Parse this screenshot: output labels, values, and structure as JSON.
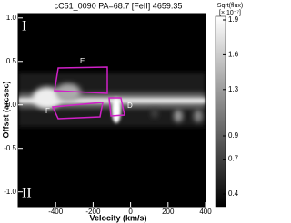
{
  "chart_data": {
    "type": "heatmap",
    "title": "cC51_0090 PA=68.7 [FeII] 4659.35",
    "x_label": "Velocity (km/s)",
    "y_label": "Offset (arcsec)",
    "xlim": [
      -600,
      400
    ],
    "xticks": [
      -400,
      -200,
      0,
      200,
      400
    ],
    "ylim": [
      -1.17,
      1.05
    ],
    "yticks": [
      {
        "value": 1,
        "label": "1.0"
      },
      0.5,
      {
        "value": 0,
        "label": "0.0"
      },
      -0.5,
      {
        "value": -1,
        "label": "-1.0"
      }
    ],
    "colorbar": {
      "label": "Sqrt(flux)",
      "unit": "[× 10⁻⁷]",
      "lim": [
        0.4,
        1.9
      ],
      "ticks": [
        1.9,
        1.6,
        1.3,
        0.9,
        0.7,
        0.4
      ]
    },
    "annotations": [
      "I",
      "II",
      "E",
      "F",
      "D"
    ]
  }
}
